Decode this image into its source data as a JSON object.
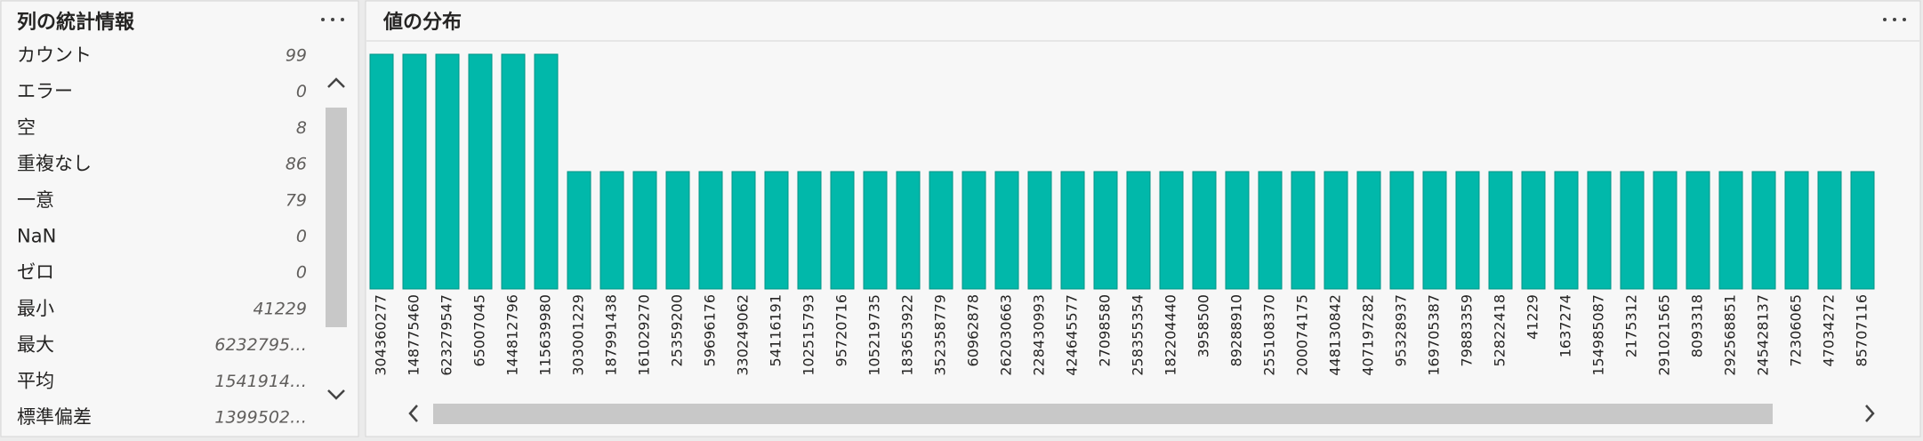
{
  "left_panel": {
    "title": "列の統計情報",
    "stats": [
      {
        "label": "カウント",
        "value": 99
      },
      {
        "label": "エラー",
        "value": 0
      },
      {
        "label": "空",
        "value": 8
      },
      {
        "label": "重複なし",
        "value": 86
      },
      {
        "label": "一意",
        "value": 79
      },
      {
        "label": "NaN",
        "value": 0
      },
      {
        "label": "ゼロ",
        "value": 0
      },
      {
        "label": "最小",
        "value": 41229
      },
      {
        "label": "最大",
        "value": "6232795…"
      },
      {
        "label": "平均",
        "value": "1541914…"
      },
      {
        "label": "標準偏差",
        "value": "1399502…"
      }
    ]
  },
  "chart_data": {
    "type": "bar",
    "title": "値の分布",
    "categories": [
      "304360277",
      "148775460",
      "623279547",
      "65007045",
      "144812796",
      "115639980",
      "303001229",
      "187991438",
      "161029270",
      "25359200",
      "59696176",
      "330249062",
      "54116191",
      "102515793",
      "95720716",
      "105219735",
      "183653922",
      "352358779",
      "60962878",
      "262030663",
      "228430993",
      "424645577",
      "27098580",
      "258355354",
      "182204440",
      "3958500",
      "89288910",
      "255108370",
      "200074175",
      "448130842",
      "407197282",
      "95328937",
      "169705387",
      "79883359",
      "52822418",
      "41229",
      "1637274",
      "154985087",
      "2175312",
      "291021565",
      "8093318",
      "292568851",
      "245428137",
      "72306065",
      "47034272",
      "85707116"
    ],
    "values": [
      2,
      2,
      2,
      2,
      2,
      2,
      1,
      1,
      1,
      1,
      1,
      1,
      1,
      1,
      1,
      1,
      1,
      1,
      1,
      1,
      1,
      1,
      1,
      1,
      1,
      1,
      1,
      1,
      1,
      1,
      1,
      1,
      1,
      1,
      1,
      1,
      1,
      1,
      1,
      1,
      1,
      1,
      1,
      1,
      1,
      1
    ],
    "color": "#01b8aa",
    "ylim": [
      0,
      2
    ]
  }
}
